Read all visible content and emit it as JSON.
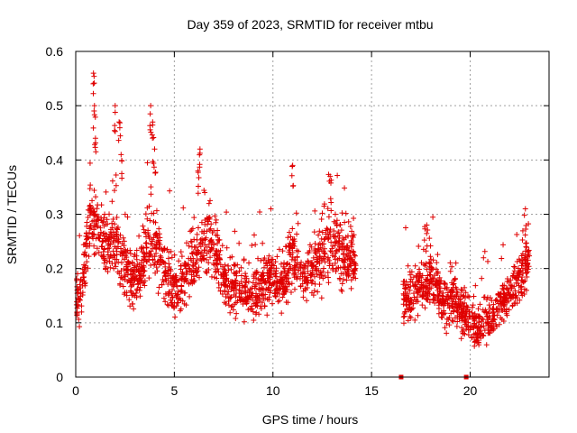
{
  "chart_data": {
    "type": "scatter",
    "title": "Day 359 of 2023, SRMTID for receiver mtbu",
    "xlabel": "GPS time / hours",
    "ylabel": "SRMTID / TECUs",
    "xlim": [
      0,
      24
    ],
    "ylim": [
      0,
      0.6
    ],
    "x_ticks": [
      0,
      5,
      10,
      15,
      20
    ],
    "x_tick_labels": [
      "0",
      "5",
      "10",
      "15",
      "20"
    ],
    "y_ticks": [
      0,
      0.1,
      0.2,
      0.3,
      0.4,
      0.5,
      0.6
    ],
    "y_tick_labels": [
      "0",
      "0.1",
      "0.2",
      "0.3",
      "0.4",
      "0.5",
      "0.6"
    ],
    "grid": true,
    "marker": "plus",
    "color": "#e00000",
    "zero_markers": [
      {
        "x": 16.5,
        "y": 0
      },
      {
        "x": 19.8,
        "y": 0
      }
    ],
    "envelope": [
      {
        "x": 0.0,
        "y": 0.14
      },
      {
        "x": 0.3,
        "y": 0.15
      },
      {
        "x": 0.5,
        "y": 0.24
      },
      {
        "x": 0.8,
        "y": 0.3
      },
      {
        "x": 1.0,
        "y": 0.28
      },
      {
        "x": 1.3,
        "y": 0.26
      },
      {
        "x": 1.6,
        "y": 0.23
      },
      {
        "x": 1.9,
        "y": 0.26
      },
      {
        "x": 2.2,
        "y": 0.24
      },
      {
        "x": 2.6,
        "y": 0.19
      },
      {
        "x": 3.0,
        "y": 0.19
      },
      {
        "x": 3.3,
        "y": 0.2
      },
      {
        "x": 3.6,
        "y": 0.25
      },
      {
        "x": 3.9,
        "y": 0.26
      },
      {
        "x": 4.2,
        "y": 0.23
      },
      {
        "x": 4.6,
        "y": 0.18
      },
      {
        "x": 5.0,
        "y": 0.16
      },
      {
        "x": 5.5,
        "y": 0.18
      },
      {
        "x": 6.0,
        "y": 0.21
      },
      {
        "x": 6.4,
        "y": 0.24
      },
      {
        "x": 6.8,
        "y": 0.25
      },
      {
        "x": 7.2,
        "y": 0.22
      },
      {
        "x": 7.6,
        "y": 0.18
      },
      {
        "x": 8.0,
        "y": 0.16
      },
      {
        "x": 8.5,
        "y": 0.16
      },
      {
        "x": 9.0,
        "y": 0.15
      },
      {
        "x": 9.5,
        "y": 0.17
      },
      {
        "x": 10.0,
        "y": 0.18
      },
      {
        "x": 10.5,
        "y": 0.17
      },
      {
        "x": 11.0,
        "y": 0.22
      },
      {
        "x": 11.5,
        "y": 0.18
      },
      {
        "x": 12.0,
        "y": 0.21
      },
      {
        "x": 12.5,
        "y": 0.22
      },
      {
        "x": 13.0,
        "y": 0.25
      },
      {
        "x": 13.5,
        "y": 0.22
      },
      {
        "x": 14.0,
        "y": 0.22
      },
      {
        "x": 14.2,
        "y": 0.18
      }
    ],
    "envelope2": [
      {
        "x": 16.6,
        "y": 0.14
      },
      {
        "x": 17.0,
        "y": 0.14
      },
      {
        "x": 17.3,
        "y": 0.16
      },
      {
        "x": 17.6,
        "y": 0.17
      },
      {
        "x": 18.0,
        "y": 0.18
      },
      {
        "x": 18.4,
        "y": 0.15
      },
      {
        "x": 18.8,
        "y": 0.14
      },
      {
        "x": 19.2,
        "y": 0.15
      },
      {
        "x": 19.6,
        "y": 0.12
      },
      {
        "x": 20.0,
        "y": 0.1
      },
      {
        "x": 20.4,
        "y": 0.08
      },
      {
        "x": 20.8,
        "y": 0.11
      },
      {
        "x": 21.2,
        "y": 0.11
      },
      {
        "x": 21.6,
        "y": 0.14
      },
      {
        "x": 22.0,
        "y": 0.15
      },
      {
        "x": 22.4,
        "y": 0.18
      },
      {
        "x": 22.8,
        "y": 0.2
      },
      {
        "x": 23.0,
        "y": 0.21
      }
    ],
    "spikes": [
      {
        "x": 0.9,
        "y": 0.56
      },
      {
        "x": 0.95,
        "y": 0.5
      },
      {
        "x": 1.0,
        "y": 0.44
      },
      {
        "x": 2.0,
        "y": 0.5
      },
      {
        "x": 2.2,
        "y": 0.47
      },
      {
        "x": 2.3,
        "y": 0.41
      },
      {
        "x": 3.8,
        "y": 0.5
      },
      {
        "x": 3.9,
        "y": 0.47
      },
      {
        "x": 4.0,
        "y": 0.42
      },
      {
        "x": 6.3,
        "y": 0.42
      },
      {
        "x": 6.2,
        "y": 0.38
      },
      {
        "x": 11.0,
        "y": 0.39
      },
      {
        "x": 12.9,
        "y": 0.37
      },
      {
        "x": 22.8,
        "y": 0.31
      },
      {
        "x": 17.8,
        "y": 0.28
      }
    ],
    "seed": 359
  }
}
